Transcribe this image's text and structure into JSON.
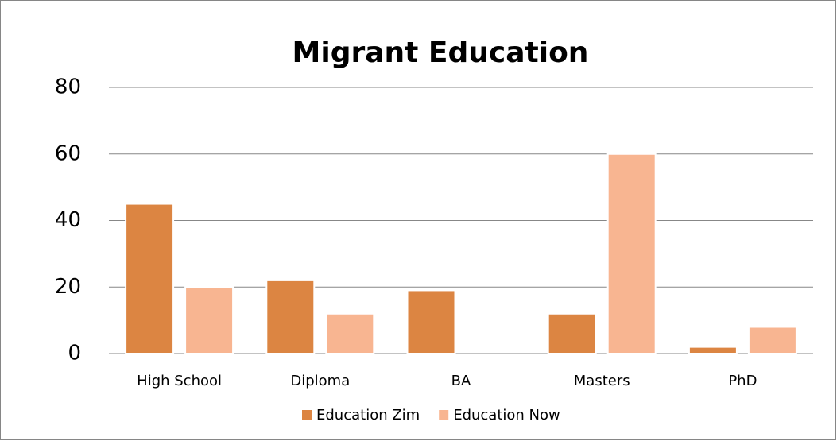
{
  "chart_data": {
    "type": "bar",
    "title": "Migrant Education",
    "categories": [
      "High School",
      "Diploma",
      "BA",
      "Masters",
      "PhD"
    ],
    "series": [
      {
        "name": "Education Zim",
        "color": "#dc8542",
        "values": [
          45,
          22,
          19,
          12,
          2
        ]
      },
      {
        "name": "Education Now",
        "color": "#f8b591",
        "values": [
          20,
          12,
          0,
          60,
          8
        ]
      }
    ],
    "ylim": [
      0,
      80
    ],
    "yticks": [
      0,
      20,
      40,
      60,
      80
    ],
    "grid": true,
    "legend": "bottom"
  }
}
